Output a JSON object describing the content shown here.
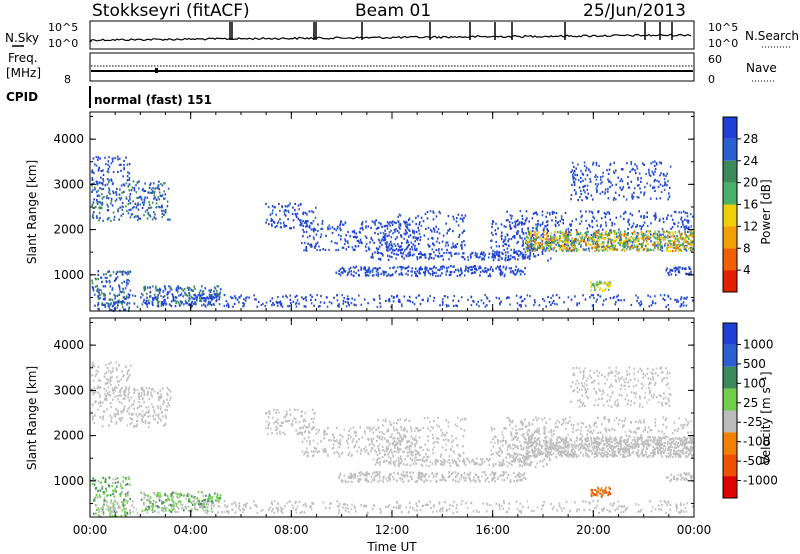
{
  "header": {
    "station": "Stokkseyri (fitACF)",
    "beam": "Beam 01",
    "date": "25/Jun/2013"
  },
  "noise_panel": {
    "left_label": "N.Sky",
    "right_label": "N.Search",
    "left_ticks": [
      "10^5",
      "10^0"
    ],
    "right_ticks": [
      "10^5",
      "10^0"
    ]
  },
  "freq_panel": {
    "left_label_1": "Freq.",
    "left_label_2": "[MHz]",
    "right_label": "Nave",
    "left_ticks": [
      "8"
    ],
    "right_ticks": [
      "60",
      "0"
    ]
  },
  "cpid_panel": {
    "label": "CPID",
    "program": "normal (fast) 151"
  },
  "colors": {
    "power_scale": [
      "#1f3fd6",
      "#2a5fd0",
      "#3a8a5a",
      "#49b06a",
      "#f0d000",
      "#f2a000",
      "#f06000",
      "#e02000"
    ],
    "velocity_scale": [
      "#1f3fd6",
      "#2a5fd0",
      "#3a8a5a",
      "#6fcf4a",
      "#bcbcbc",
      "#f08000",
      "#f05000",
      "#e00000"
    ]
  },
  "chart_data": [
    {
      "type": "heatmap",
      "title": "",
      "xlabel": "",
      "ylabel": "Slant Range [km]",
      "x_ticks": [
        "00:00",
        "04:00",
        "08:00",
        "12:00",
        "16:00",
        "20:00",
        "00:00"
      ],
      "y_ticks": [
        "1000",
        "2000",
        "3000",
        "4000"
      ],
      "ylim": [
        200,
        4600
      ],
      "colorbar": {
        "label": "Power [dB]",
        "ticks": [
          "4",
          "8",
          "12",
          "16",
          "20",
          "24",
          "28"
        ]
      }
    },
    {
      "type": "heatmap",
      "title": "",
      "xlabel": "Time UT",
      "ylabel": "Slant Range [km]",
      "x_ticks": [
        "00:00",
        "04:00",
        "08:00",
        "12:00",
        "16:00",
        "20:00",
        "00:00"
      ],
      "y_ticks": [
        "1000",
        "2000",
        "3000",
        "4000"
      ],
      "ylim": [
        200,
        4600
      ],
      "colorbar": {
        "label": "Velocity [m s⁻¹]",
        "ticks": [
          "1000",
          "500",
          "100",
          "25",
          "-25",
          "-100",
          "-500",
          "-1000"
        ]
      }
    }
  ]
}
